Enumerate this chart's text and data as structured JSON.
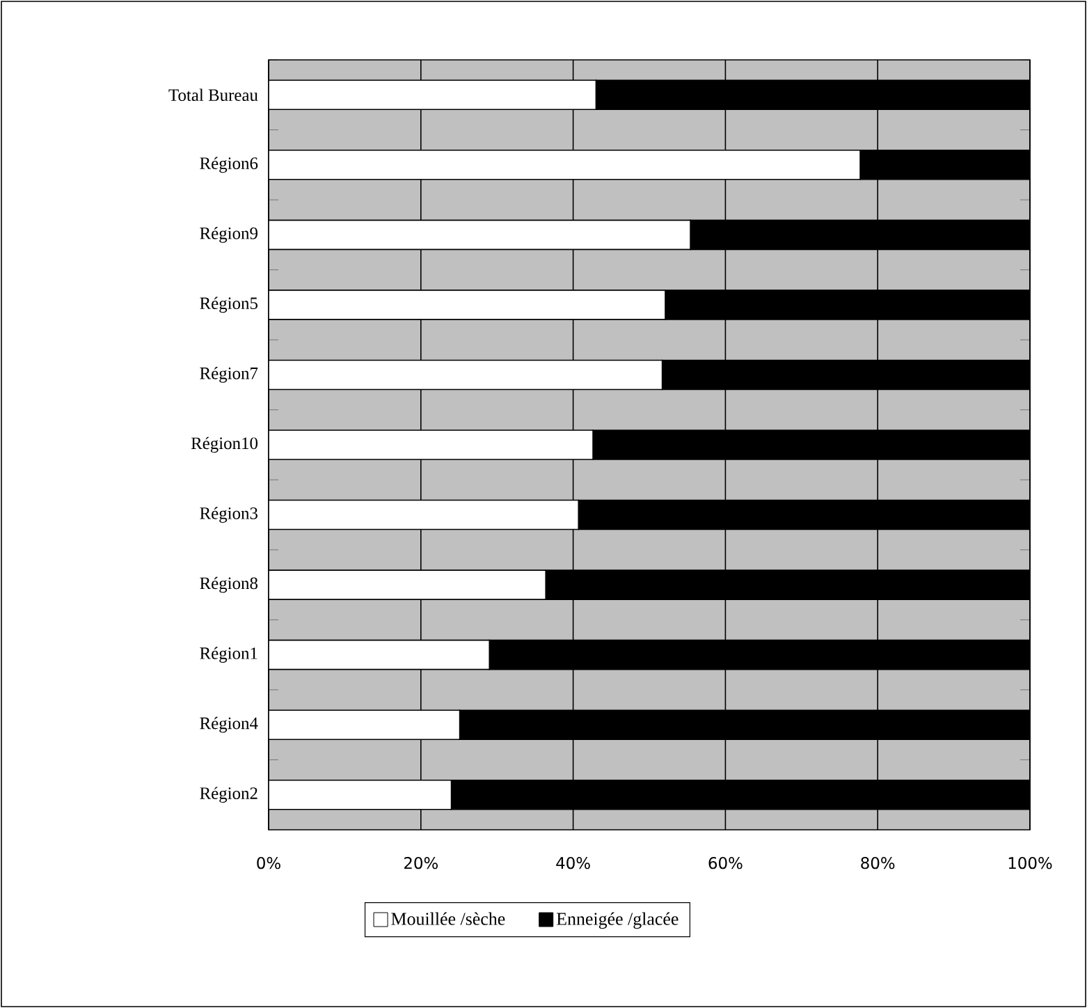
{
  "chart_data": {
    "type": "bar",
    "orientation": "horizontal",
    "stacked": true,
    "categories": [
      "Total Bureau",
      "Région6",
      "Région9",
      "Région5",
      "Région7",
      "Région10",
      "Région3",
      "Région8",
      "Région1",
      "Région4",
      "Région2"
    ],
    "series": [
      {
        "name": "Mouillée /sèche",
        "color": "#ffffff",
        "values": [
          43.0,
          77.7,
          55.4,
          52.1,
          51.7,
          42.6,
          40.7,
          36.4,
          29.0,
          25.1,
          24.0
        ]
      },
      {
        "name": "Enneigée /glacée",
        "color": "#000000",
        "values": [
          57.0,
          22.3,
          44.6,
          47.9,
          48.3,
          57.4,
          59.3,
          63.6,
          71.0,
          74.9,
          76.0
        ]
      }
    ],
    "xlim": [
      0,
      100
    ],
    "xticks": [
      {
        "value": 0,
        "label": "0%"
      },
      {
        "value": 20,
        "label": "20%"
      },
      {
        "value": 40,
        "label": "40%"
      },
      {
        "value": 60,
        "label": "60%"
      },
      {
        "value": 80,
        "label": "80%"
      },
      {
        "value": 100,
        "label": "100%"
      }
    ],
    "grid": "x",
    "legend": "bottom"
  }
}
